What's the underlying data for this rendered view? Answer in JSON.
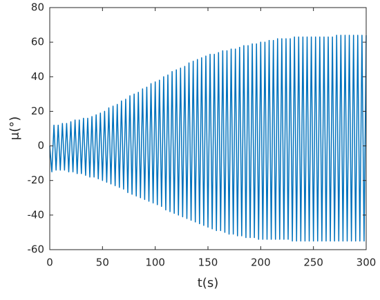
{
  "chart_data": {
    "type": "line",
    "xlabel": "t(s)",
    "ylabel": "μ(°)",
    "color": "#0072bd",
    "xlim": [
      0,
      300
    ],
    "ylim": [
      -60,
      80
    ],
    "xticks": [
      0,
      50,
      100,
      150,
      200,
      250,
      300
    ],
    "yticks": [
      -60,
      -40,
      -20,
      0,
      20,
      40,
      60,
      80
    ],
    "grid": false,
    "x": [
      0,
      2,
      4,
      6,
      8,
      10,
      12,
      14,
      16,
      18,
      20,
      22,
      24,
      26,
      28,
      30,
      32,
      34,
      36,
      38,
      40,
      42,
      44,
      46,
      48,
      50,
      52,
      54,
      56,
      58,
      60,
      62,
      64,
      66,
      68,
      70,
      72,
      74,
      76,
      78,
      80,
      82,
      84,
      86,
      88,
      90,
      92,
      94,
      96,
      98,
      100,
      102,
      104,
      106,
      108,
      110,
      112,
      114,
      116,
      118,
      120,
      122,
      124,
      126,
      128,
      130,
      132,
      134,
      136,
      138,
      140,
      142,
      144,
      146,
      148,
      150,
      152,
      154,
      156,
      158,
      160,
      162,
      164,
      166,
      168,
      170,
      172,
      174,
      176,
      178,
      180,
      182,
      184,
      186,
      188,
      190,
      192,
      194,
      196,
      198,
      200,
      202,
      204,
      206,
      208,
      210,
      212,
      214,
      216,
      218,
      220,
      222,
      224,
      226,
      228,
      230,
      232,
      234,
      236,
      238,
      240,
      242,
      244,
      246,
      248,
      250,
      252,
      254,
      256,
      258,
      260,
      262,
      264,
      266,
      268,
      270,
      272,
      274,
      276,
      278,
      280,
      282,
      284,
      286,
      288,
      290,
      292,
      294,
      296,
      298,
      300
    ],
    "values": [
      0,
      -15,
      12,
      -14,
      12,
      -14,
      13,
      -14,
      13,
      -15,
      14,
      -15,
      15,
      -16,
      15,
      -16,
      16,
      -17,
      16,
      -18,
      17,
      -18,
      18,
      -19,
      19,
      -20,
      20,
      -21,
      22,
      -22,
      23,
      -23,
      24,
      -24,
      26,
      -25,
      27,
      -27,
      29,
      -28,
      30,
      -29,
      31,
      -30,
      33,
      -31,
      34,
      -32,
      36,
      -33,
      37,
      -34,
      38,
      -35,
      40,
      -37,
      41,
      -38,
      43,
      -39,
      44,
      -40,
      45,
      -41,
      46,
      -42,
      48,
      -43,
      49,
      -44,
      50,
      -45,
      51,
      -46,
      52,
      -47,
      53,
      -48,
      53,
      -49,
      54,
      -49,
      55,
      -50,
      55,
      -51,
      56,
      -51,
      56,
      -52,
      57,
      -52,
      58,
      -53,
      58,
      -53,
      59,
      -53,
      59,
      -54,
      60,
      -54,
      60,
      -54,
      61,
      -54,
      61,
      -54,
      62,
      -54,
      62,
      -54,
      62,
      -54,
      62,
      -55,
      63,
      -55,
      63,
      -55,
      63,
      -55,
      63,
      -55,
      63,
      -55,
      63,
      -55,
      63,
      -55,
      63,
      -55,
      63,
      -55,
      63,
      -55,
      64,
      -55,
      64,
      -55,
      64,
      -55,
      64,
      -55,
      64,
      -55,
      64,
      -55,
      64,
      -55,
      64
    ]
  }
}
